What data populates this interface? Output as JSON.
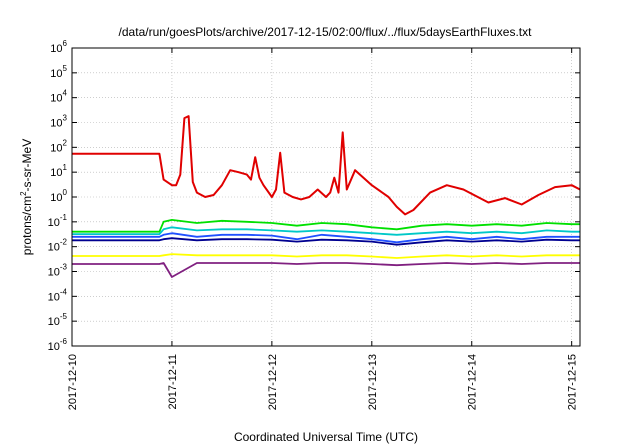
{
  "chart_data": {
    "type": "line",
    "title": "/data/run/goesPlots/archive/2017-12-15/02:00/flux/../flux/5daysEarthFluxes.txt",
    "xlabel": "Coordinated Universal Time (UTC)",
    "ylabel": {
      "base": "protons/cm",
      "sup": "2",
      "rest": "-s-sr-MeV"
    },
    "y_scale": "log",
    "ylim": [
      1e-06,
      1000000.0
    ],
    "y_ticks": [
      {
        "base": "10",
        "exp": "-6",
        "value": 1e-06
      },
      {
        "base": "10",
        "exp": "-5",
        "value": 1e-05
      },
      {
        "base": "10",
        "exp": "-4",
        "value": 0.0001
      },
      {
        "base": "10",
        "exp": "-3",
        "value": 0.001
      },
      {
        "base": "10",
        "exp": "-2",
        "value": 0.01
      },
      {
        "base": "10",
        "exp": "-1",
        "value": 0.1
      },
      {
        "base": "10",
        "exp": "0",
        "value": 1
      },
      {
        "base": "10",
        "exp": "1",
        "value": 10
      },
      {
        "base": "10",
        "exp": "2",
        "value": 100
      },
      {
        "base": "10",
        "exp": "3",
        "value": 1000
      },
      {
        "base": "10",
        "exp": "4",
        "value": 10000
      },
      {
        "base": "10",
        "exp": "5",
        "value": 100000
      },
      {
        "base": "10",
        "exp": "6",
        "value": 1000000
      }
    ],
    "xlim": [
      "2017-12-10",
      "2017-12-15T02:00"
    ],
    "x_ticks": [
      "2017-12-10",
      "2017-12-11",
      "2017-12-12",
      "2017-12-13",
      "2017-12-14",
      "2017-12-15"
    ],
    "grid": true,
    "series": [
      {
        "color": "#e00000",
        "x": [
          "2017-12-10",
          "2017-12-10T21:00",
          "2017-12-10T22:00",
          "2017-12-11T00:00",
          "2017-12-11T01:00",
          "2017-12-11T02:00",
          "2017-12-11T03:00",
          "2017-12-11T04:00",
          "2017-12-11T05:00",
          "2017-12-11T06:00",
          "2017-12-11T08:00",
          "2017-12-11T10:00",
          "2017-12-11T12:00",
          "2017-12-11T14:00",
          "2017-12-11T16:00",
          "2017-12-11T18:00",
          "2017-12-11T19:00",
          "2017-12-11T20:00",
          "2017-12-11T21:00",
          "2017-12-11T22:00",
          "2017-12-12T00:00",
          "2017-12-12T01:00",
          "2017-12-12T02:00",
          "2017-12-12T03:00",
          "2017-12-12T05:00",
          "2017-12-12T07:00",
          "2017-12-12T09:00",
          "2017-12-12T11:00",
          "2017-12-12T13:00",
          "2017-12-12T14:00",
          "2017-12-12T15:00",
          "2017-12-12T16:00",
          "2017-12-12T17:00",
          "2017-12-12T18:00",
          "2017-12-12T20:00",
          "2017-12-13T00:00",
          "2017-12-13T04:00",
          "2017-12-13T06:00",
          "2017-12-13T08:00",
          "2017-12-13T10:00",
          "2017-12-13T14:00",
          "2017-12-13T18:00",
          "2017-12-13T22:00",
          "2017-12-14T04:00",
          "2017-12-14T08:00",
          "2017-12-14T12:00",
          "2017-12-14T16:00",
          "2017-12-14T20:00",
          "2017-12-15T00:00",
          "2017-12-15T02:00"
        ],
        "y": [
          55,
          55,
          5,
          3,
          3,
          8,
          1500,
          1800,
          4,
          1.5,
          1,
          1.2,
          3,
          12,
          10,
          8,
          5,
          40,
          6,
          3,
          1,
          2,
          60,
          1.5,
          1,
          0.8,
          1,
          2,
          1,
          1.5,
          6,
          1.5,
          400,
          2,
          12,
          3,
          1,
          0.4,
          0.2,
          0.3,
          1.5,
          3,
          2,
          0.6,
          0.9,
          0.5,
          1.2,
          2.5,
          3,
          2
        ]
      },
      {
        "color": "#00e000",
        "x": [
          "2017-12-10",
          "2017-12-10T21:00",
          "2017-12-10T22:00",
          "2017-12-11T00:00",
          "2017-12-11T06:00",
          "2017-12-11T12:00",
          "2017-12-11T18:00",
          "2017-12-12T00:00",
          "2017-12-12T06:00",
          "2017-12-12T12:00",
          "2017-12-12T18:00",
          "2017-12-13T00:00",
          "2017-12-13T06:00",
          "2017-12-13T12:00",
          "2017-12-13T18:00",
          "2017-12-14T00:00",
          "2017-12-14T06:00",
          "2017-12-14T12:00",
          "2017-12-14T18:00",
          "2017-12-15T00:00",
          "2017-12-15T02:00"
        ],
        "y": [
          0.04,
          0.04,
          0.1,
          0.12,
          0.09,
          0.11,
          0.1,
          0.09,
          0.07,
          0.09,
          0.08,
          0.06,
          0.05,
          0.07,
          0.08,
          0.07,
          0.08,
          0.07,
          0.09,
          0.08,
          0.08
        ]
      },
      {
        "color": "#00c8c8",
        "x": [
          "2017-12-10",
          "2017-12-10T21:00",
          "2017-12-10T22:00",
          "2017-12-11T00:00",
          "2017-12-11T06:00",
          "2017-12-11T12:00",
          "2017-12-11T18:00",
          "2017-12-12T00:00",
          "2017-12-12T06:00",
          "2017-12-12T12:00",
          "2017-12-12T18:00",
          "2017-12-13T00:00",
          "2017-12-13T06:00",
          "2017-12-13T12:00",
          "2017-12-13T18:00",
          "2017-12-14T00:00",
          "2017-12-14T06:00",
          "2017-12-14T12:00",
          "2017-12-14T18:00",
          "2017-12-15T00:00",
          "2017-12-15T02:00"
        ],
        "y": [
          0.032,
          0.032,
          0.05,
          0.06,
          0.045,
          0.05,
          0.05,
          0.045,
          0.04,
          0.045,
          0.04,
          0.035,
          0.03,
          0.035,
          0.04,
          0.035,
          0.04,
          0.035,
          0.045,
          0.04,
          0.04
        ]
      },
      {
        "color": "#2050ff",
        "x": [
          "2017-12-10",
          "2017-12-10T21:00",
          "2017-12-10T22:00",
          "2017-12-11T00:00",
          "2017-12-11T06:00",
          "2017-12-11T12:00",
          "2017-12-11T18:00",
          "2017-12-12T00:00",
          "2017-12-12T06:00",
          "2017-12-12T12:00",
          "2017-12-12T18:00",
          "2017-12-13T00:00",
          "2017-12-13T06:00",
          "2017-12-13T12:00",
          "2017-12-13T18:00",
          "2017-12-14T00:00",
          "2017-12-14T06:00",
          "2017-12-14T12:00",
          "2017-12-14T18:00",
          "2017-12-15T00:00",
          "2017-12-15T02:00"
        ],
        "y": [
          0.025,
          0.025,
          0.03,
          0.035,
          0.025,
          0.03,
          0.03,
          0.028,
          0.02,
          0.03,
          0.025,
          0.02,
          0.015,
          0.02,
          0.025,
          0.02,
          0.025,
          0.02,
          0.025,
          0.025,
          0.025
        ]
      },
      {
        "color": "#000090",
        "x": [
          "2017-12-10",
          "2017-12-10T21:00",
          "2017-12-10T22:00",
          "2017-12-11T00:00",
          "2017-12-11T06:00",
          "2017-12-11T12:00",
          "2017-12-11T18:00",
          "2017-12-12T00:00",
          "2017-12-12T06:00",
          "2017-12-12T12:00",
          "2017-12-12T18:00",
          "2017-12-13T00:00",
          "2017-12-13T06:00",
          "2017-12-13T12:00",
          "2017-12-13T18:00",
          "2017-12-14T00:00",
          "2017-12-14T06:00",
          "2017-12-14T12:00",
          "2017-12-14T18:00",
          "2017-12-15T00:00",
          "2017-12-15T02:00"
        ],
        "y": [
          0.018,
          0.018,
          0.02,
          0.022,
          0.018,
          0.02,
          0.02,
          0.019,
          0.016,
          0.019,
          0.018,
          0.016,
          0.012,
          0.015,
          0.018,
          0.016,
          0.018,
          0.016,
          0.019,
          0.018,
          0.018
        ]
      },
      {
        "color": "#ffff00",
        "x": [
          "2017-12-10",
          "2017-12-10T21:00",
          "2017-12-10T22:00",
          "2017-12-11T00:00",
          "2017-12-11T06:00",
          "2017-12-11T12:00",
          "2017-12-11T18:00",
          "2017-12-12T00:00",
          "2017-12-12T06:00",
          "2017-12-12T12:00",
          "2017-12-12T18:00",
          "2017-12-13T00:00",
          "2017-12-13T06:00",
          "2017-12-13T12:00",
          "2017-12-13T18:00",
          "2017-12-14T00:00",
          "2017-12-14T06:00",
          "2017-12-14T12:00",
          "2017-12-14T18:00",
          "2017-12-15T00:00",
          "2017-12-15T02:00"
        ],
        "y": [
          0.0042,
          0.0042,
          0.0045,
          0.005,
          0.0045,
          0.0045,
          0.0045,
          0.0045,
          0.004,
          0.0045,
          0.0045,
          0.004,
          0.0035,
          0.004,
          0.0045,
          0.004,
          0.0045,
          0.004,
          0.0045,
          0.0045,
          0.0045
        ]
      },
      {
        "color": "#802080",
        "x": [
          "2017-12-10",
          "2017-12-10T21:00",
          "2017-12-10T22:00",
          "2017-12-11T00:00",
          "2017-12-11T06:00",
          "2017-12-11T12:00",
          "2017-12-11T18:00",
          "2017-12-12T00:00",
          "2017-12-12T06:00",
          "2017-12-12T12:00",
          "2017-12-12T18:00",
          "2017-12-13T00:00",
          "2017-12-13T06:00",
          "2017-12-13T12:00",
          "2017-12-13T18:00",
          "2017-12-14T00:00",
          "2017-12-14T06:00",
          "2017-12-14T12:00",
          "2017-12-14T18:00",
          "2017-12-15T00:00",
          "2017-12-15T02:00"
        ],
        "y": [
          0.002,
          0.002,
          0.0022,
          0.0006,
          0.0022,
          0.0022,
          0.0022,
          0.0022,
          0.002,
          0.0022,
          0.0022,
          0.002,
          0.0018,
          0.002,
          0.0022,
          0.002,
          0.0022,
          0.002,
          0.0022,
          0.0022,
          0.0022
        ]
      }
    ]
  }
}
